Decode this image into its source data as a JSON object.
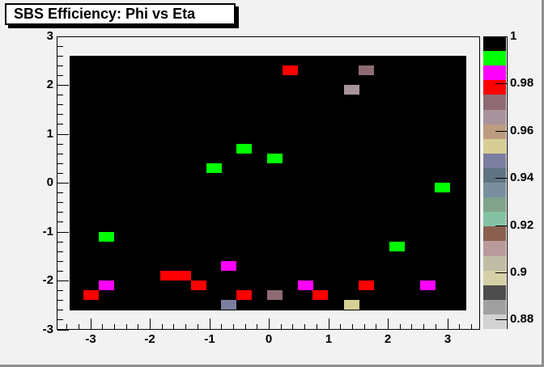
{
  "window": {
    "background_color": "#F2F2F2",
    "border_color": "#8F8F8F"
  },
  "header": {
    "title": "SBS Efficiency: Phi vs Eta"
  },
  "chart_data": {
    "type": "heatmap",
    "title": "SBS Efficiency: Phi vs Eta",
    "xlabel": "",
    "ylabel": "",
    "grid": false,
    "legend_position": "right-palette-bar",
    "x_axis": {
      "range": [
        -3.56,
        3.55
      ],
      "tick_values": [
        -3,
        -2,
        -1,
        0,
        1,
        2,
        3
      ],
      "tick_labels": [
        "-3",
        "-2",
        "-1",
        "0",
        "1",
        "2",
        "3"
      ],
      "minor_tick_step": 0.2
    },
    "y_axis": {
      "range": [
        -3,
        3
      ],
      "tick_values": [
        -3,
        -2,
        -1,
        0,
        1,
        2,
        3
      ],
      "tick_labels": [
        "-3",
        "-2",
        "-1",
        "0",
        "1",
        "2",
        "3"
      ],
      "minor_tick_step": 0.2
    },
    "z_axis": {
      "range": [
        0.876,
        1.0
      ],
      "tick_values": [
        1,
        0.98,
        0.96,
        0.94,
        0.92,
        0.9,
        0.88
      ],
      "tick_labels": [
        "1",
        "0.98",
        "0.96",
        "0.94",
        "0.92",
        "0.9",
        "0.88"
      ]
    },
    "palette_colors_top_to_bottom": [
      "#000000",
      "#00FF00",
      "#FF00FF",
      "#FF0000",
      "#8E6B73",
      "#A8929B",
      "#BC9B7E",
      "#D6CE93",
      "#7B7E9E",
      "#5F7483",
      "#7A8F9E",
      "#7FA38B",
      "#85C2A5",
      "#8A5F50",
      "#B89A9A",
      "#C0BCA3",
      "#D5D0A5",
      "#4D4D4D",
      "#A0A0A0",
      "#D2D2D2"
    ],
    "background_value_region": {
      "x_range": [
        -3.35,
        3.31
      ],
      "y_range": [
        -2.6,
        2.6
      ],
      "value": 1,
      "color": "#000000"
    },
    "bin_size": {
      "x": 0.2615,
      "y": 0.2
    },
    "bins": [
      {
        "eta": 0.36,
        "phi": 2.3,
        "value": 0.978,
        "color": "#FF0000"
      },
      {
        "eta": 1.64,
        "phi": 2.3,
        "value": 0.972,
        "color": "#8E6B73"
      },
      {
        "eta": 1.39,
        "phi": 1.9,
        "value": 0.966,
        "color": "#A8929B"
      },
      {
        "eta": -0.41,
        "phi": 0.7,
        "value": 0.991,
        "color": "#00FF00"
      },
      {
        "eta": 0.1,
        "phi": 0.5,
        "value": 0.991,
        "color": "#00FF00"
      },
      {
        "eta": -0.92,
        "phi": 0.3,
        "value": 0.991,
        "color": "#00FF00"
      },
      {
        "eta": 2.92,
        "phi": -0.1,
        "value": 0.991,
        "color": "#00FF00"
      },
      {
        "eta": -2.72,
        "phi": -1.1,
        "value": 0.991,
        "color": "#00FF00"
      },
      {
        "eta": 2.16,
        "phi": -1.3,
        "value": 0.991,
        "color": "#00FF00"
      },
      {
        "eta": -0.67,
        "phi": -1.7,
        "value": 0.985,
        "color": "#FF00FF"
      },
      {
        "eta": -1.69,
        "phi": -1.9,
        "value": 0.978,
        "color": "#FF0000"
      },
      {
        "eta": -1.43,
        "phi": -1.9,
        "value": 0.978,
        "color": "#FF0000"
      },
      {
        "eta": -2.72,
        "phi": -2.1,
        "value": 0.985,
        "color": "#FF00FF"
      },
      {
        "eta": -1.18,
        "phi": -2.1,
        "value": 0.978,
        "color": "#FF0000"
      },
      {
        "eta": 0.62,
        "phi": -2.1,
        "value": 0.985,
        "color": "#FF00FF"
      },
      {
        "eta": 1.64,
        "phi": -2.1,
        "value": 0.978,
        "color": "#FF0000"
      },
      {
        "eta": 2.67,
        "phi": -2.1,
        "value": 0.985,
        "color": "#FF00FF"
      },
      {
        "eta": -2.98,
        "phi": -2.3,
        "value": 0.978,
        "color": "#FF0000"
      },
      {
        "eta": -0.41,
        "phi": -2.3,
        "value": 0.978,
        "color": "#FF0000"
      },
      {
        "eta": 0.1,
        "phi": -2.3,
        "value": 0.972,
        "color": "#8E6B73"
      },
      {
        "eta": 0.87,
        "phi": -2.3,
        "value": 0.978,
        "color": "#FF0000"
      },
      {
        "eta": -0.67,
        "phi": -2.5,
        "value": 0.947,
        "color": "#7B7E9E"
      },
      {
        "eta": 1.39,
        "phi": -2.5,
        "value": 0.954,
        "color": "#D6CE93"
      }
    ]
  }
}
